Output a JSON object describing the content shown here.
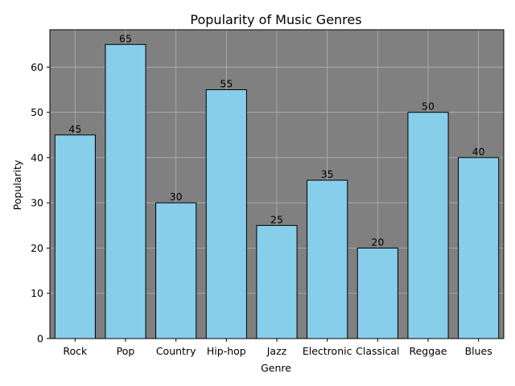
{
  "chart_data": {
    "type": "bar",
    "title": "Popularity of Music Genres",
    "xlabel": "Genre",
    "ylabel": "Popularity",
    "categories": [
      "Rock",
      "Pop",
      "Country",
      "Hip-hop",
      "Jazz",
      "Electronic",
      "Classical",
      "Reggae",
      "Blues"
    ],
    "values": [
      45,
      65,
      30,
      55,
      25,
      35,
      20,
      50,
      40
    ],
    "ylim": [
      0,
      68.25
    ],
    "yticks": [
      0,
      10,
      20,
      30,
      40,
      50,
      60
    ],
    "grid": true,
    "data_labels": true,
    "colors": {
      "bar_fill": "#87ceeb",
      "bar_edge": "#000000",
      "plot_background": "#808080",
      "grid": "#b0b0b0"
    }
  }
}
